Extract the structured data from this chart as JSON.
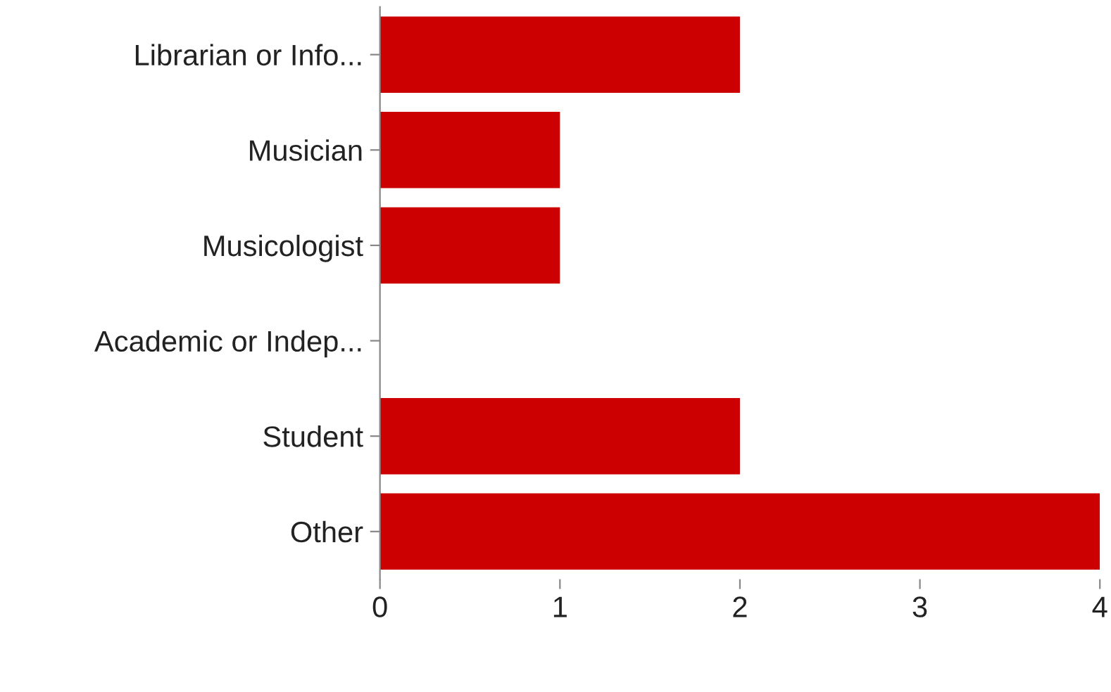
{
  "chart_data": {
    "type": "bar",
    "orientation": "horizontal",
    "categories": [
      "Librarian or Info...",
      "Musician",
      "Musicologist",
      "Academic or Indep...",
      "Student",
      "Other"
    ],
    "values": [
      2,
      1,
      1,
      0,
      2,
      4
    ],
    "color": "#cc0000",
    "xlim": [
      0,
      4
    ],
    "xticks": [
      0,
      1,
      2,
      3,
      4
    ],
    "grid": false
  }
}
